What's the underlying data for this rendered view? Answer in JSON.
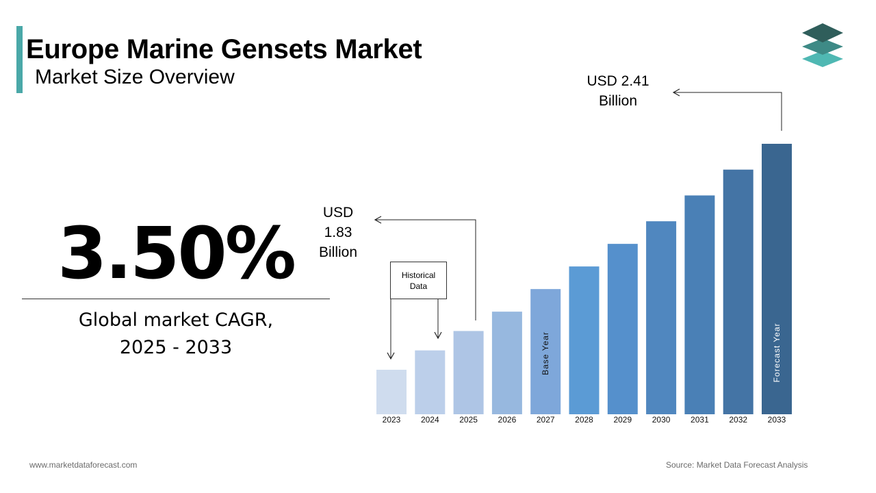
{
  "header": {
    "title": "Europe Marine Gensets Market",
    "subtitle": "Market Size Overview"
  },
  "logo": {
    "icon": "stacked-layers-logo-icon",
    "colors": [
      "#2f5e5b",
      "#3e8a86",
      "#4fb8b3"
    ]
  },
  "summary": {
    "cagr_value": "3.50%",
    "cagr_label_line1": "Global market CAGR,",
    "cagr_label_line2": "2025 - 2033"
  },
  "annotations": {
    "historical_box_line1": "Historical",
    "historical_box_line2": "Data",
    "start_value_line1": "USD",
    "start_value_line2": "1.83",
    "start_value_line3": "Billion",
    "end_value_line1": "USD 2.41",
    "end_value_line2": "Billion"
  },
  "chart_data": {
    "type": "bar",
    "categories": [
      "2023",
      "2024",
      "2025",
      "2026",
      "2027",
      "2028",
      "2029",
      "2030",
      "2031",
      "2032",
      "2033"
    ],
    "values": [
      1.71,
      1.77,
      1.83,
      1.89,
      1.96,
      2.03,
      2.1,
      2.17,
      2.25,
      2.33,
      2.41
    ],
    "bar_labels": {
      "2027": "Base Year",
      "2033": "Forecast Year"
    },
    "colors": [
      "#cfdcee",
      "#bccfea",
      "#aec5e5",
      "#97b8df",
      "#7ea7da",
      "#5b9bd5",
      "#5590cc",
      "#5087bf",
      "#4a80b6",
      "#4474a5",
      "#3a6690"
    ],
    "title": "",
    "xlabel": "",
    "ylabel": ""
  },
  "footer": {
    "website": "www.marketdataforecast.com",
    "source": "Source: Market Data Forecast Analysis"
  }
}
